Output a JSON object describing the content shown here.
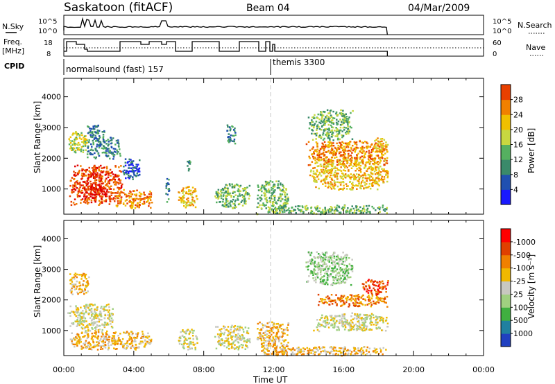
{
  "header": {
    "station": "Saskatoon (fitACF)",
    "beam": "Beam 04",
    "date": "04/Mar/2009"
  },
  "noise_panel": {
    "left_label": "N.Sky",
    "right_label": "N.Search",
    "left_ticks": [
      "10^5",
      "10^0"
    ],
    "right_ticks": [
      "10^5",
      "10^0"
    ]
  },
  "freq_panel": {
    "left_label_line1": "Freq.",
    "left_label_line2": "[MHz]",
    "right_label": "Nave",
    "left_ticks": [
      "18",
      "8"
    ],
    "right_ticks": [
      "60",
      "0"
    ]
  },
  "cpid": {
    "label": "CPID",
    "modes": [
      {
        "name": "normalsound (fast) 157",
        "start_hour": 0
      },
      {
        "name": "themis 3300",
        "start_hour": 12
      }
    ]
  },
  "colors": {
    "power_scale": [
      "#1a1aff",
      "#2050b0",
      "#3a8a6a",
      "#55b060",
      "#c8d840",
      "#f0c000",
      "#f08000",
      "#e84000",
      "#e00000"
    ],
    "velocity_scale": [
      "#ff0000",
      "#e04000",
      "#f08000",
      "#f0b800",
      "#c8c8c0",
      "#a0d080",
      "#40b040",
      "#2080a0",
      "#2040c0"
    ]
  },
  "chart_data": [
    {
      "type": "heatmap",
      "name": "power",
      "xlabel": "",
      "ylabel": "Slant Range [km]",
      "xlim": [
        0,
        24
      ],
      "ylim": [
        180,
        4600
      ],
      "yticks": [
        1000,
        2000,
        3000,
        4000
      ],
      "colorbar_label": "Power [dB]",
      "colorbar_ticks": [
        "4",
        "8",
        "12",
        "16",
        "20",
        "24",
        "28"
      ],
      "echo_regions": [
        {
          "t0": 0.3,
          "t1": 3.3,
          "r0": 500,
          "r1": 1800,
          "level": 7
        },
        {
          "t0": 1.0,
          "t1": 2.4,
          "r0": 700,
          "r1": 1200,
          "level": 8
        },
        {
          "t0": 0.2,
          "t1": 1.4,
          "r0": 2200,
          "r1": 2900,
          "level": 4
        },
        {
          "t0": 1.3,
          "t1": 2.3,
          "r0": 2000,
          "r1": 3100,
          "level": 2
        },
        {
          "t0": 2.2,
          "t1": 3.2,
          "r0": 2000,
          "r1": 2700,
          "level": 2
        },
        {
          "t0": 2.9,
          "t1": 5.0,
          "r0": 400,
          "r1": 1000,
          "level": 6
        },
        {
          "t0": 3.3,
          "t1": 4.3,
          "r0": 1300,
          "r1": 2000,
          "level": 1
        },
        {
          "t0": 5.8,
          "t1": 6.0,
          "r0": 500,
          "r1": 1400,
          "level": 2
        },
        {
          "t0": 6.5,
          "t1": 7.6,
          "r0": 400,
          "r1": 1100,
          "level": 5
        },
        {
          "t0": 7.0,
          "t1": 7.2,
          "r0": 1600,
          "r1": 2100,
          "level": 2
        },
        {
          "t0": 8.6,
          "t1": 10.6,
          "r0": 400,
          "r1": 1200,
          "level": 3
        },
        {
          "t0": 9.2,
          "t1": 9.8,
          "r0": 2500,
          "r1": 3100,
          "level": 2
        },
        {
          "t0": 11.0,
          "t1": 12.8,
          "r0": 200,
          "r1": 1300,
          "level": 3
        },
        {
          "t0": 12.0,
          "t1": 18.5,
          "r0": 200,
          "r1": 500,
          "level": 3
        },
        {
          "t0": 13.8,
          "t1": 18.5,
          "r0": 1800,
          "r1": 2600,
          "level": 6
        },
        {
          "t0": 14.0,
          "t1": 18.5,
          "r0": 1000,
          "r1": 2000,
          "level": 5
        },
        {
          "t0": 13.9,
          "t1": 16.5,
          "r0": 2600,
          "r1": 3600,
          "level": 3
        },
        {
          "t0": 17.6,
          "t1": 18.5,
          "r0": 2200,
          "r1": 2700,
          "level": 5
        }
      ]
    },
    {
      "type": "heatmap",
      "name": "velocity",
      "xlabel": "Time UT",
      "ylabel": "Slant Range [km]",
      "xlim": [
        0,
        24
      ],
      "ylim": [
        180,
        4600
      ],
      "yticks": [
        1000,
        2000,
        3000,
        4000
      ],
      "xticklabels": [
        "00:00",
        "04:00",
        "08:00",
        "12:00",
        "16:00",
        "20:00",
        "00:00"
      ],
      "colorbar_label": "Velocity [m s⁻¹]",
      "colorbar_ticks": [
        "-1000",
        "-500",
        "-100",
        "-25",
        "25",
        "100",
        "500",
        "1000"
      ],
      "echo_regions": [
        {
          "t0": 0.3,
          "t1": 3.0,
          "r0": 400,
          "r1": 1000,
          "level": 3
        },
        {
          "t0": 0.2,
          "t1": 2.8,
          "r0": 1000,
          "r1": 1900,
          "level": 4
        },
        {
          "t0": 2.8,
          "t1": 5.0,
          "r0": 400,
          "r1": 1000,
          "level": 3
        },
        {
          "t0": 0.3,
          "t1": 1.4,
          "r0": 2200,
          "r1": 2900,
          "level": 3
        },
        {
          "t0": 6.5,
          "t1": 7.6,
          "r0": 400,
          "r1": 1100,
          "level": 4
        },
        {
          "t0": 8.6,
          "t1": 10.6,
          "r0": 400,
          "r1": 1200,
          "level": 4
        },
        {
          "t0": 11.0,
          "t1": 12.8,
          "r0": 200,
          "r1": 1300,
          "level": 3
        },
        {
          "t0": 12.0,
          "t1": 18.5,
          "r0": 200,
          "r1": 500,
          "level": 3
        },
        {
          "t0": 14.2,
          "t1": 18.5,
          "r0": 1000,
          "r1": 1600,
          "level": 4
        },
        {
          "t0": 14.5,
          "t1": 18.5,
          "r0": 1800,
          "r1": 2200,
          "level": 2
        },
        {
          "t0": 13.8,
          "t1": 16.5,
          "r0": 2500,
          "r1": 3600,
          "level": 5
        },
        {
          "t0": 17.0,
          "t1": 18.5,
          "r0": 2200,
          "r1": 2700,
          "level": 1
        }
      ]
    }
  ]
}
